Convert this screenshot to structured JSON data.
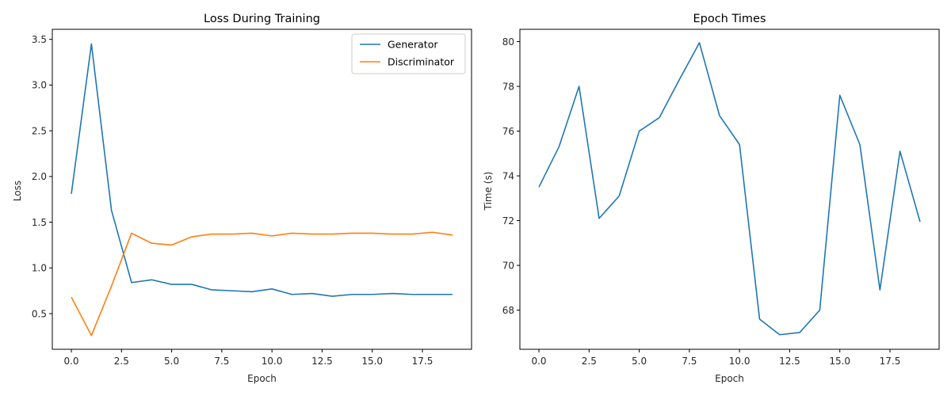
{
  "chart_data": [
    {
      "type": "line",
      "title": "Loss During Training",
      "xlabel": "Epoch",
      "ylabel": "Loss",
      "x": [
        0,
        1,
        2,
        3,
        4,
        5,
        6,
        7,
        8,
        9,
        10,
        11,
        12,
        13,
        14,
        15,
        16,
        17,
        18,
        19
      ],
      "xlim": [
        -0.95,
        19.95
      ],
      "ylim": [
        0.11,
        3.61
      ],
      "xticks": [
        0.0,
        2.5,
        5.0,
        7.5,
        10.0,
        12.5,
        15.0,
        17.5
      ],
      "xtick_labels": [
        "0.0",
        "2.5",
        "5.0",
        "7.5",
        "10.0",
        "12.5",
        "15.0",
        "17.5"
      ],
      "yticks": [
        0.5,
        1.0,
        1.5,
        2.0,
        2.5,
        3.0,
        3.5
      ],
      "ytick_labels": [
        "0.5",
        "1.0",
        "1.5",
        "2.0",
        "2.5",
        "3.0",
        "3.5"
      ],
      "grid": false,
      "legend": "top-right",
      "series": [
        {
          "name": "Generator",
          "color": "#1f77b4",
          "values": [
            1.81,
            3.45,
            1.63,
            0.84,
            0.87,
            0.82,
            0.82,
            0.76,
            0.75,
            0.74,
            0.77,
            0.71,
            0.72,
            0.69,
            0.71,
            0.71,
            0.72,
            0.71,
            0.71,
            0.71
          ]
        },
        {
          "name": "Discriminator",
          "color": "#ff7f0e",
          "values": [
            0.68,
            0.26,
            0.8,
            1.38,
            1.27,
            1.25,
            1.34,
            1.37,
            1.37,
            1.38,
            1.35,
            1.38,
            1.37,
            1.37,
            1.38,
            1.38,
            1.37,
            1.37,
            1.39,
            1.36
          ]
        }
      ]
    },
    {
      "type": "line",
      "title": "Epoch Times",
      "xlabel": "Epoch",
      "ylabel": "Time (s)",
      "x": [
        0,
        1,
        2,
        3,
        4,
        5,
        6,
        7,
        8,
        9,
        10,
        11,
        12,
        13,
        14,
        15,
        16,
        17,
        18,
        19
      ],
      "xlim": [
        -0.95,
        19.95
      ],
      "ylim": [
        66.25,
        80.55
      ],
      "xticks": [
        0.0,
        2.5,
        5.0,
        7.5,
        10.0,
        12.5,
        15.0,
        17.5
      ],
      "xtick_labels": [
        "0.0",
        "2.5",
        "5.0",
        "7.5",
        "10.0",
        "12.5",
        "15.0",
        "17.5"
      ],
      "yticks": [
        68,
        70,
        72,
        74,
        76,
        78,
        80
      ],
      "ytick_labels": [
        "68",
        "70",
        "72",
        "74",
        "76",
        "78",
        "80"
      ],
      "grid": false,
      "series": [
        {
          "color": "#1f77b4",
          "values": [
            73.5,
            75.3,
            78.0,
            72.1,
            73.1,
            76.0,
            76.6,
            78.3,
            79.95,
            76.7,
            75.4,
            67.6,
            66.9,
            67.0,
            68.0,
            77.6,
            75.4,
            68.9,
            75.1,
            71.95
          ]
        }
      ]
    }
  ]
}
